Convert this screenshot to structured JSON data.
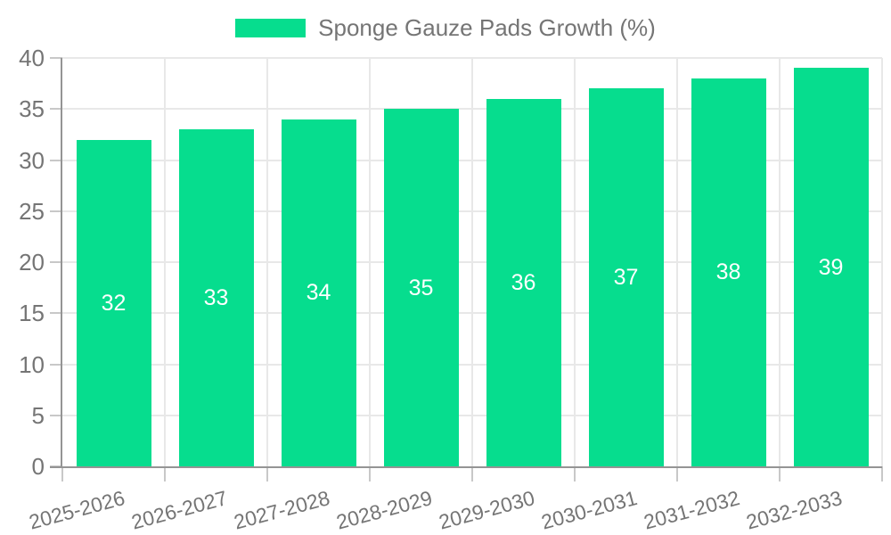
{
  "legend": {
    "label": "Sponge Gauze Pads Growth (%)",
    "swatch_color": "#06DD8E"
  },
  "colors": {
    "grid": "#e8e8e8",
    "axis": "#949494",
    "tick": "#c8c8c8",
    "text": "#757575",
    "bar": "#06DD8E",
    "value_label": "#ffffff",
    "background": "#ffffff"
  },
  "chart_data": {
    "type": "bar",
    "title": "",
    "xlabel": "",
    "ylabel": "",
    "categories": [
      "2025-2026",
      "2026-2027",
      "2027-2028",
      "2028-2029",
      "2029-2030",
      "2030-2031",
      "2031-2032",
      "2032-2033"
    ],
    "series": [
      {
        "name": "Sponge Gauze Pads Growth (%)",
        "values": [
          32,
          33,
          34,
          35,
          36,
          37,
          38,
          39
        ]
      }
    ],
    "ylim": [
      0,
      40
    ],
    "yticks": [
      0,
      5,
      10,
      15,
      20,
      25,
      30,
      35,
      40
    ],
    "grid": true,
    "legend_position": "top-center",
    "bar_color": "#06DD8E",
    "value_labels_position": "inside-center",
    "value_label_color": "#ffffff",
    "x_tick_label_rotation_deg": -15
  }
}
